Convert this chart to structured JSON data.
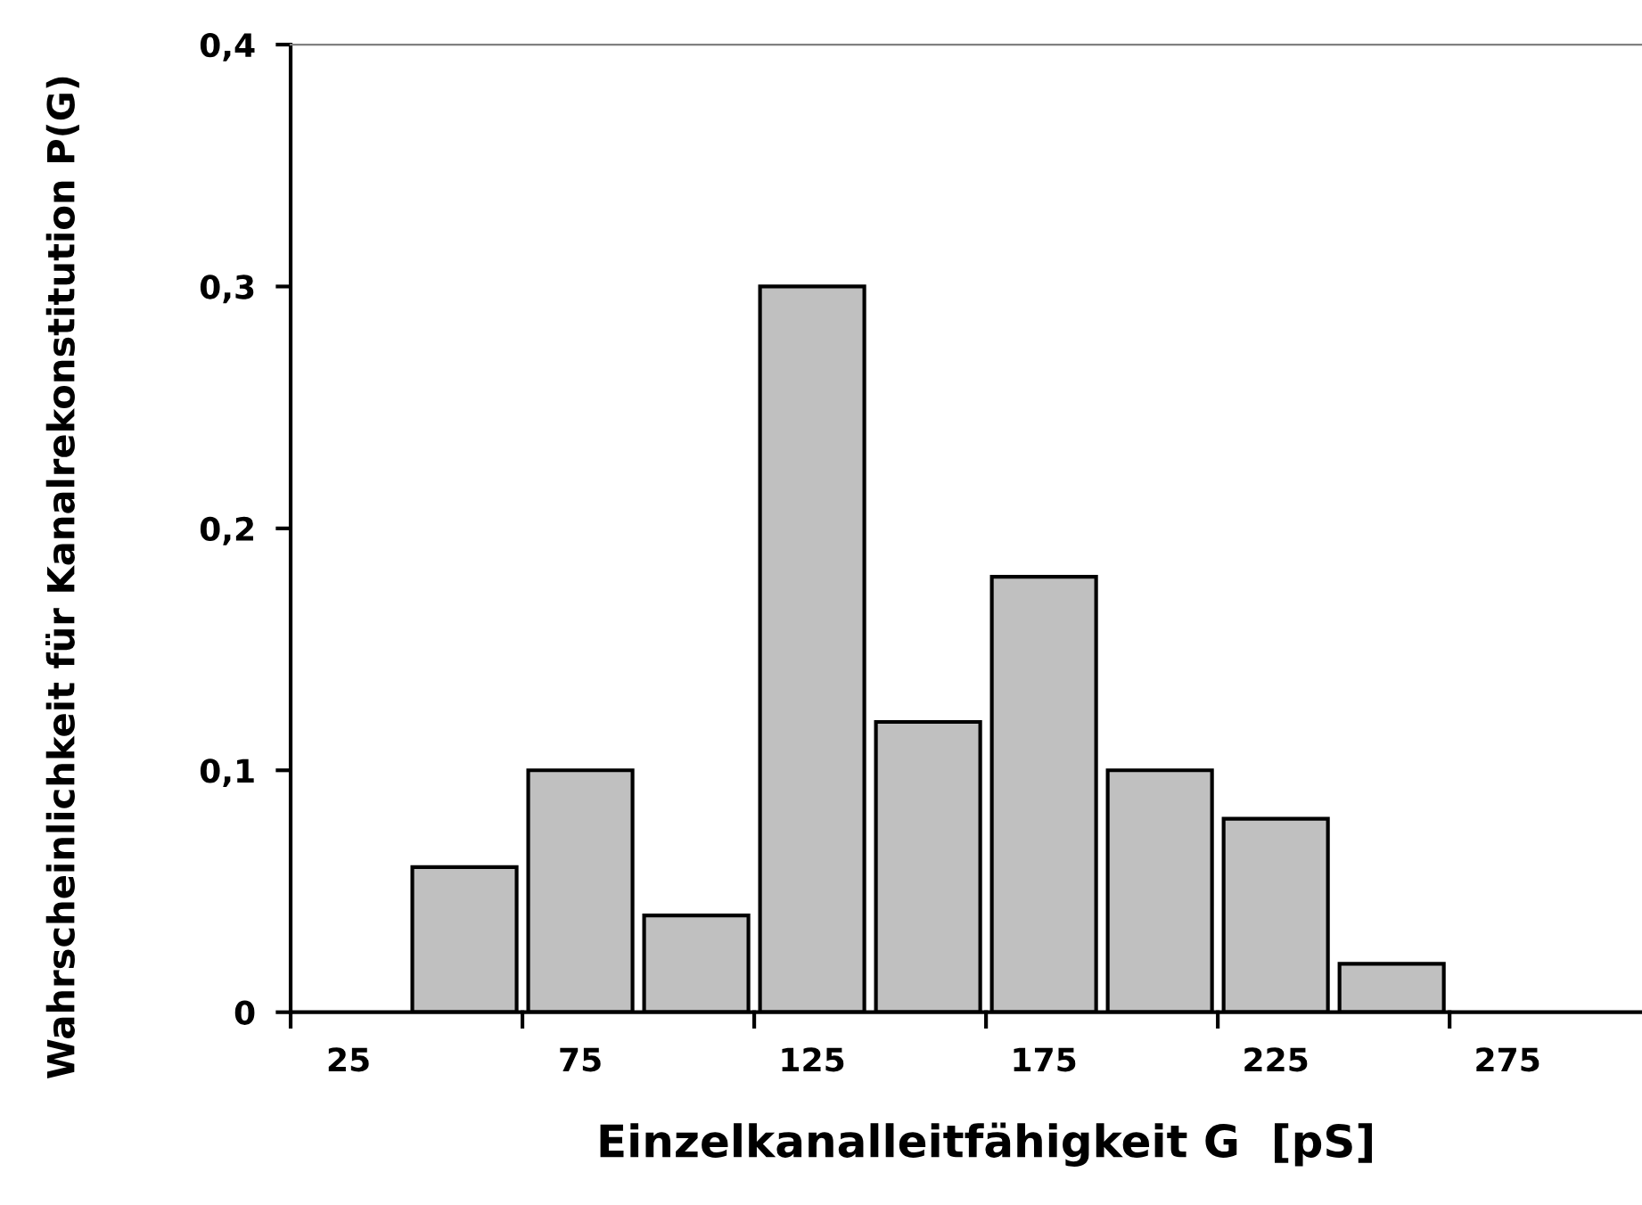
{
  "chart_data": {
    "type": "bar",
    "xlabel": "Einzelkanalleitfähigkeit G  [pS]",
    "ylabel": "Wahrscheinlichkeit für Kanalrekonstitution P(G)",
    "categories": [
      "25",
      null,
      "75",
      null,
      "125",
      null,
      "175",
      null,
      "225",
      null,
      "275",
      null
    ],
    "values": [
      null,
      0.06,
      0.1,
      0.04,
      0.3,
      0.12,
      0.18,
      0.1,
      0.08,
      0.02,
      null,
      null
    ],
    "color": "#c0c0c0",
    "ylim": [
      0,
      0.4
    ],
    "yticks": [
      0,
      {
        "value": 0.1,
        "label": "0,1"
      },
      {
        "value": 0.2,
        "label": "0,2"
      },
      {
        "value": 0.3,
        "label": "0,3"
      },
      {
        "value": 0.4,
        "label": "0,4"
      }
    ],
    "grid": false
  }
}
